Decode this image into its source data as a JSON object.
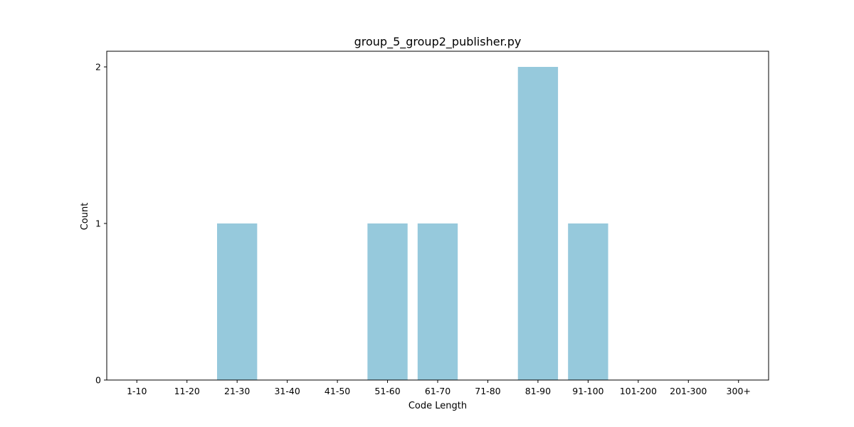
{
  "chart_data": {
    "type": "bar",
    "title": "group_5_group2_publisher.py",
    "xlabel": "Code Length",
    "ylabel": "Count",
    "categories": [
      "1-10",
      "11-20",
      "21-30",
      "31-40",
      "41-50",
      "51-60",
      "61-70",
      "71-80",
      "81-90",
      "91-100",
      "101-200",
      "201-300",
      "300+"
    ],
    "values": [
      0,
      0,
      1,
      0,
      0,
      1,
      1,
      0,
      2,
      1,
      0,
      0,
      0
    ],
    "ylim": [
      0,
      2.1
    ],
    "yticks": [
      0,
      1,
      2
    ],
    "grid": false,
    "bar_color": "#96c9dc",
    "axis_color": "#000000"
  }
}
